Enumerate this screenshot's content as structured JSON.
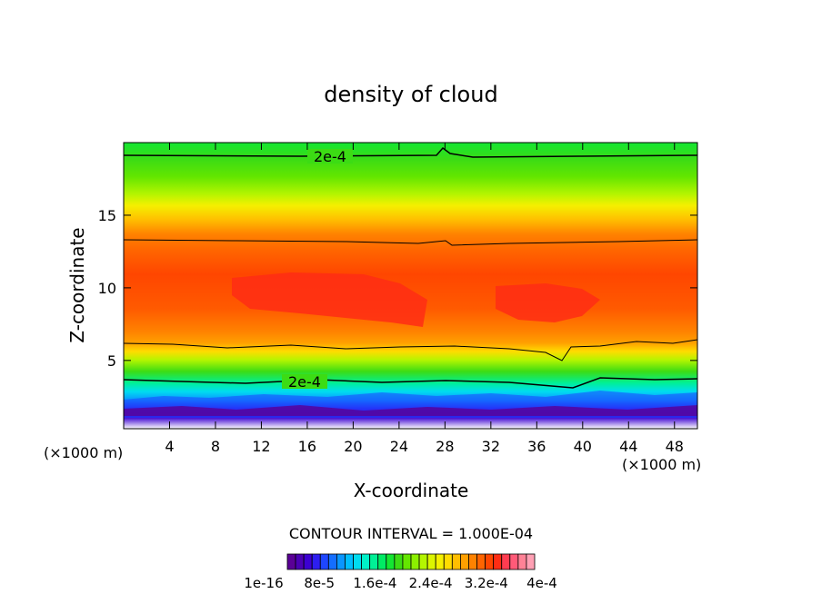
{
  "chart_data": {
    "type": "heatmap",
    "title": "density of cloud",
    "xlabel": "X-coordinate",
    "ylabel": "Z-coordinate",
    "x_unit_left": "(×1000 m)",
    "x_unit_right": "(×1000 m)",
    "xlim": [
      0,
      50
    ],
    "ylim": [
      0.3,
      20
    ],
    "x_ticks": [
      4,
      8,
      12,
      16,
      20,
      24,
      28,
      32,
      36,
      40,
      44,
      48
    ],
    "y_ticks": [
      5,
      10,
      15
    ],
    "contour_interval_text": "CONTOUR INTERVAL = 1.000E-04",
    "contour_labels": [
      "2e-4",
      "2e-4"
    ],
    "colorbar": {
      "colors": [
        "#5a0096",
        "#4b00b4",
        "#3c00d2",
        "#2d1ef0",
        "#1e46ff",
        "#146eff",
        "#0a96ff",
        "#00beff",
        "#00dcf0",
        "#00f0c8",
        "#00f096",
        "#00eb64",
        "#14e632",
        "#3cdc14",
        "#64e600",
        "#8cf000",
        "#b4f500",
        "#dcf500",
        "#f5f000",
        "#ffdc00",
        "#ffbe00",
        "#ffa000",
        "#ff8200",
        "#ff6400",
        "#ff4600",
        "#ff2d14",
        "#ff3c50",
        "#ff5a78",
        "#ff8296",
        "#ffa0b4"
      ],
      "tick_labels": [
        "1e-16",
        "8e-5",
        "1.6e-4",
        "2.4e-4",
        "3.2e-4",
        "4e-4"
      ]
    }
  }
}
